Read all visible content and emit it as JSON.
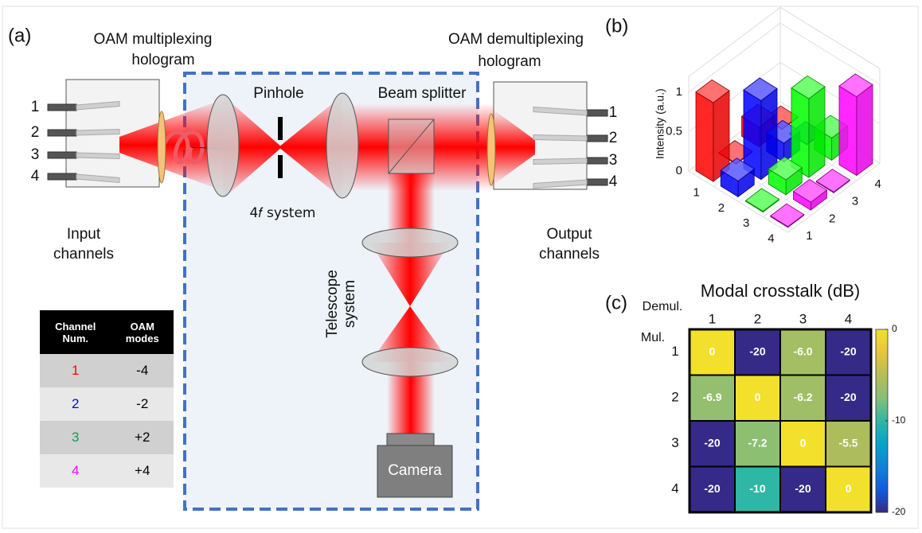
{
  "panel_labels": [
    "(a)",
    "(b)",
    "(c)"
  ],
  "diagram": {
    "mux_hologram": [
      "OAM multiplexing",
      "hologram"
    ],
    "demux_hologram": [
      "OAM demultiplexing",
      "hologram"
    ],
    "pinhole": "Pinhole",
    "beam_splitter": "Beam splitter",
    "four_f": "4𝑓 system",
    "telescope": [
      "Telescope",
      "system"
    ],
    "input": [
      "Input",
      "channels"
    ],
    "output": [
      "Output",
      "channels"
    ],
    "camera": "Camera",
    "input_ports": [
      "1",
      "2",
      "3",
      "4"
    ],
    "output_ports": [
      "1",
      "2",
      "3",
      "4"
    ]
  },
  "table": {
    "header": [
      "Channel Num.",
      "OAM modes"
    ],
    "rows": [
      [
        "1",
        "-4"
      ],
      [
        "2",
        "-2"
      ],
      [
        "3",
        "+2"
      ],
      [
        "4",
        "+4"
      ]
    ],
    "channel_colors": [
      "#ff0000",
      "#0000ff",
      "#00a650",
      "#ff00ff"
    ]
  },
  "chart_data": [
    {
      "type": "bar3d",
      "zlabel": "Intensity (a.u.)",
      "categories": [
        "1",
        "2",
        "3",
        "4"
      ],
      "y_categories": [
        "1",
        "2",
        "3",
        "4"
      ],
      "zlim": [
        0,
        1.2
      ],
      "zticks": [
        0,
        0.5,
        1
      ],
      "grid": true,
      "series": [
        {
          "color": "#ff0000",
          "values": [
            1,
            0.01,
            0.25,
            0.01
          ]
        },
        {
          "color": "#0000ff",
          "values": [
            0.2,
            1,
            0.24,
            0.01
          ]
        },
        {
          "color": "#00ff00",
          "values": [
            0.01,
            0.19,
            1,
            0.28
          ]
        },
        {
          "color": "#ff00ff",
          "values": [
            0.01,
            0.1,
            0.01,
            1
          ]
        }
      ]
    },
    {
      "type": "heatmap",
      "title": "Modal crosstalk (dB)",
      "xlabel": "Demul.",
      "ylabel": "Mul.",
      "x_categories": [
        "1",
        "2",
        "3",
        "4"
      ],
      "y_categories": [
        "1",
        "2",
        "3",
        "4"
      ],
      "values": [
        [
          0,
          -20,
          -6,
          -20
        ],
        [
          -6.9,
          0,
          -6.2,
          -20
        ],
        [
          -20,
          -7.2,
          0,
          -5.5
        ],
        [
          -20,
          -10,
          -20,
          0
        ]
      ],
      "value_labels": [
        [
          "0",
          "-20",
          "-6.0",
          "-20"
        ],
        [
          "-6.9",
          "0",
          "-6.2",
          "-20"
        ],
        [
          "-20",
          "-7.2",
          "0",
          "-5.5"
        ],
        [
          "-20",
          "-10",
          "-20",
          "0"
        ]
      ],
      "clim": [
        -20,
        0
      ],
      "cticks": [
        0,
        -10,
        -20
      ],
      "colormap": "parula"
    }
  ]
}
